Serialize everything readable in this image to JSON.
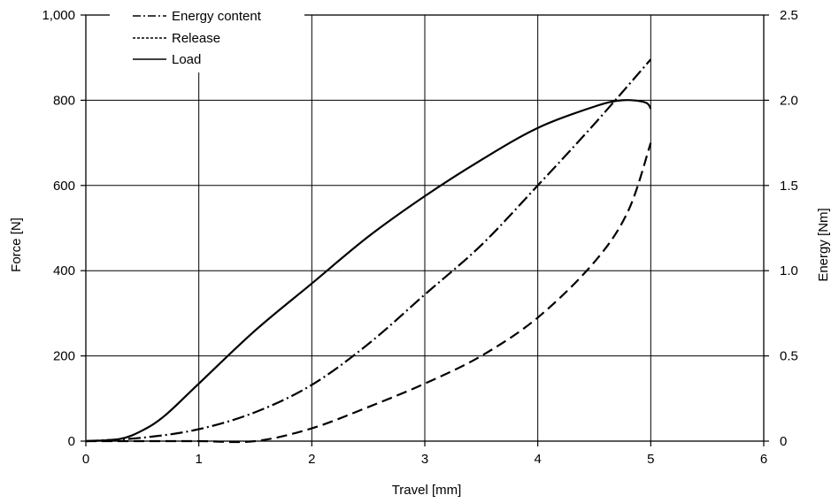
{
  "chart_data": {
    "type": "line",
    "xlabel": "Travel [mm]",
    "ylabel_left": "Force [N]",
    "ylabel_right": "Energy [Nm]",
    "xlim": [
      0,
      6
    ],
    "ylim_left": [
      0,
      1000
    ],
    "ylim_right": [
      0,
      2.5
    ],
    "x_ticks": [
      "0",
      "1",
      "2",
      "3",
      "4",
      "5",
      "6"
    ],
    "y_ticks_left": [
      "0",
      "200",
      "400",
      "600",
      "800",
      "1,000"
    ],
    "y_ticks_right": [
      "0",
      "0.5",
      "1.0",
      "1.5",
      "2.0",
      "2.5"
    ],
    "grid": true,
    "legend_position": "top-left",
    "series": [
      {
        "name": "Energy content",
        "axis": "right",
        "line_style": "dash-dot",
        "x": [
          0,
          0.5,
          1.0,
          1.5,
          2.0,
          2.5,
          3.0,
          3.5,
          4.0,
          4.5,
          5.0
        ],
        "y": [
          0,
          0.02,
          0.07,
          0.17,
          0.33,
          0.57,
          0.86,
          1.15,
          1.5,
          1.86,
          2.24
        ]
      },
      {
        "name": "Release",
        "axis": "left",
        "line_style": "dashed",
        "x": [
          0,
          0.5,
          1.0,
          1.5,
          2.0,
          2.5,
          3.0,
          3.5,
          4.0,
          4.5,
          4.8,
          5.0
        ],
        "y": [
          0,
          0,
          0,
          0,
          30,
          80,
          135,
          200,
          290,
          420,
          540,
          700
        ]
      },
      {
        "name": "Load",
        "axis": "left",
        "line_style": "solid",
        "x": [
          0,
          0.3,
          0.5,
          0.7,
          1.0,
          1.5,
          2.0,
          2.5,
          3.0,
          3.5,
          4.0,
          4.5,
          4.75,
          4.95,
          5.0
        ],
        "y": [
          0,
          5,
          25,
          60,
          135,
          260,
          370,
          480,
          575,
          660,
          735,
          785,
          800,
          795,
          780
        ]
      }
    ]
  }
}
